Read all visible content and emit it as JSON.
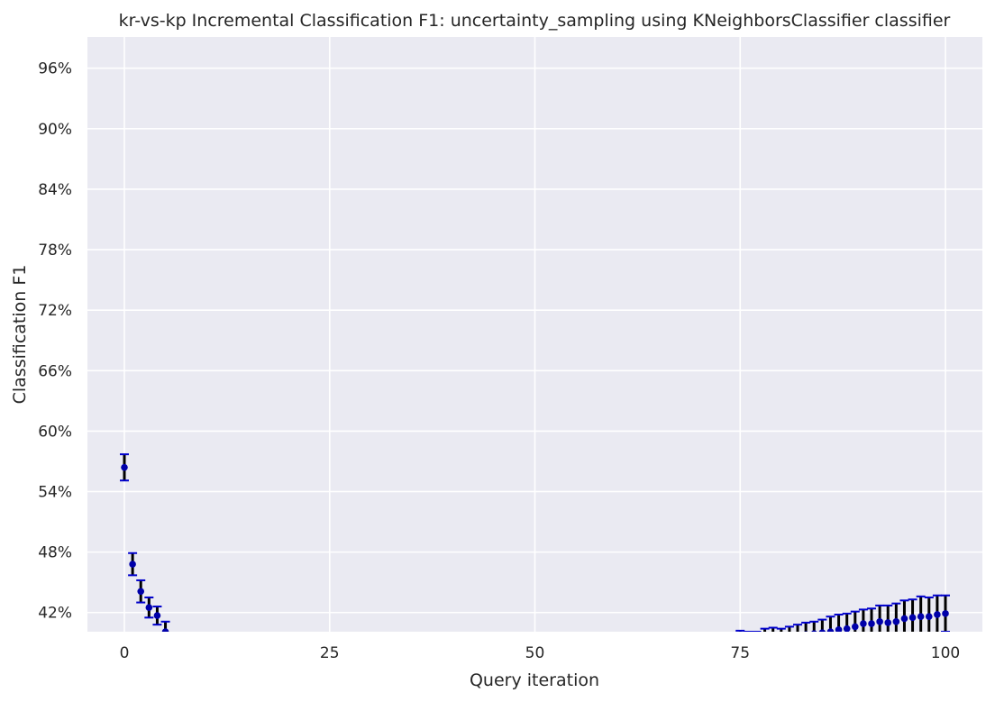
{
  "chart_data": {
    "type": "scatter",
    "title": "kr-vs-kp Incremental Classification F1: uncertainty_sampling using KNeighborsClassifier classifier",
    "xlabel": "Query iteration",
    "ylabel": "Classification F1",
    "xlim": [
      -4.5,
      104.5
    ],
    "ylim": [
      40.1,
      99.1
    ],
    "xticks": [
      0,
      25,
      50,
      75,
      100
    ],
    "xtick_labels": [
      "0",
      "25",
      "50",
      "75",
      "100"
    ],
    "yticks": [
      42,
      48,
      54,
      60,
      66,
      72,
      78,
      84,
      90,
      96
    ],
    "ytick_labels": [
      "42%",
      "48%",
      "54%",
      "60%",
      "66%",
      "72%",
      "78%",
      "84%",
      "90%",
      "96%"
    ],
    "grid": true,
    "colors": {
      "background": "#eaeaf2",
      "grid": "#ffffff",
      "marker": "#0000aa",
      "errorbar": "#000000",
      "cap": "#0000cc"
    },
    "series": [
      {
        "x": [
          0,
          1,
          2,
          3,
          4,
          5,
          74,
          75,
          76,
          77,
          78,
          79,
          80,
          81,
          82,
          83,
          84,
          85,
          86,
          87,
          88,
          89,
          90,
          91,
          92,
          93,
          94,
          95,
          96,
          97,
          98,
          99,
          100
        ],
        "y": [
          56.4,
          46.8,
          44.1,
          42.5,
          41.7,
          40.1,
          39.2,
          39.3,
          39.2,
          39.2,
          39.4,
          39.5,
          39.4,
          39.5,
          39.6,
          39.8,
          39.9,
          40.0,
          40.1,
          40.3,
          40.4,
          40.6,
          40.9,
          40.9,
          41.1,
          41.0,
          41.1,
          41.4,
          41.5,
          41.6,
          41.6,
          41.8,
          41.9
        ],
        "err": [
          1.3,
          1.1,
          1.1,
          1.0,
          0.9,
          1.0,
          0.8,
          0.9,
          0.9,
          0.9,
          1.0,
          1.0,
          1.0,
          1.1,
          1.2,
          1.2,
          1.2,
          1.3,
          1.5,
          1.5,
          1.5,
          1.5,
          1.4,
          1.5,
          1.6,
          1.7,
          1.8,
          1.8,
          1.8,
          2.0,
          1.9,
          1.9,
          1.8
        ]
      }
    ]
  }
}
